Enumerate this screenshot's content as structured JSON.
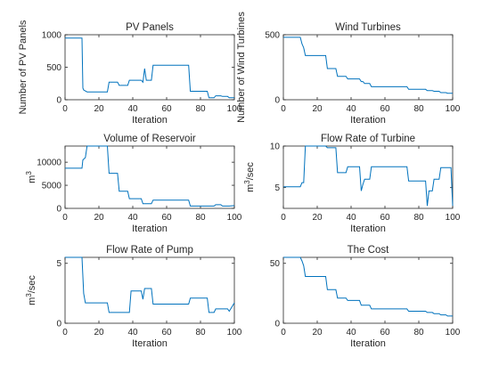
{
  "series_color": "#0072BD",
  "chart_data": [
    {
      "type": "line",
      "title": "PV Panels",
      "xlabel": "Iteration",
      "ylabel": "Number of PV Panels",
      "ylabel_sup": "",
      "xlim": [
        0,
        100
      ],
      "ylim": [
        0,
        1000
      ],
      "xticks": [
        0,
        20,
        40,
        60,
        80,
        100
      ],
      "yticks": [
        0,
        500,
        1000
      ],
      "grid": false,
      "x": [
        0,
        10,
        10.5,
        11,
        13,
        25,
        26,
        31,
        32,
        37,
        38,
        45,
        46,
        47,
        48,
        51,
        52,
        73,
        74,
        84,
        85,
        88,
        89,
        92,
        93,
        96,
        97,
        100
      ],
      "y": [
        950,
        950,
        180,
        150,
        120,
        120,
        270,
        270,
        220,
        220,
        300,
        300,
        270,
        480,
        300,
        300,
        530,
        530,
        130,
        130,
        30,
        30,
        60,
        60,
        50,
        50,
        30,
        30
      ]
    },
    {
      "type": "line",
      "title": "Wind Turbines",
      "xlabel": "Iteration",
      "ylabel": "Number of Wind Turbines",
      "ylabel_sup": "",
      "xlim": [
        0,
        100
      ],
      "ylim": [
        0,
        500
      ],
      "xticks": [
        0,
        20,
        40,
        60,
        80,
        100
      ],
      "yticks": [
        0,
        500
      ],
      "grid": false,
      "x": [
        0,
        10,
        11,
        12,
        13,
        25,
        26,
        31,
        32,
        37,
        38,
        45,
        46,
        47,
        48,
        51,
        52,
        73,
        74,
        84,
        85,
        88,
        89,
        92,
        93,
        96,
        97,
        100
      ],
      "y": [
        480,
        480,
        430,
        400,
        340,
        340,
        240,
        240,
        180,
        180,
        160,
        160,
        140,
        140,
        125,
        125,
        100,
        100,
        80,
        80,
        70,
        70,
        65,
        65,
        55,
        55,
        50,
        50
      ]
    },
    {
      "type": "line",
      "title": "Volume of Reservoir",
      "xlabel": "Iteration",
      "ylabel": "m",
      "ylabel_sup": "3",
      "xlim": [
        0,
        100
      ],
      "ylim": [
        0,
        13500
      ],
      "xticks": [
        0,
        20,
        40,
        60,
        80,
        100
      ],
      "yticks": [
        0,
        5000,
        10000
      ],
      "grid": false,
      "x": [
        0,
        10,
        10.5,
        12,
        13,
        25,
        26,
        31,
        32,
        37,
        38,
        45,
        46,
        47,
        48,
        51,
        52,
        73,
        74,
        84,
        85,
        88,
        89,
        92,
        93,
        96,
        97,
        100
      ],
      "y": [
        8700,
        8700,
        10500,
        11000,
        13500,
        13500,
        7600,
        7600,
        3700,
        3700,
        2100,
        2100,
        1000,
        1000,
        1000,
        1000,
        1800,
        1800,
        500,
        500,
        500,
        500,
        800,
        800,
        500,
        500,
        500,
        600
      ]
    },
    {
      "type": "line",
      "title": "Flow Rate of Turbine",
      "xlabel": "Iteration",
      "ylabel": "m",
      "ylabel_sup": "3",
      "ylabel_suffix": "/sec",
      "xlim": [
        0,
        100
      ],
      "ylim": [
        2.5,
        10
      ],
      "xticks": [
        0,
        20,
        40,
        60,
        80,
        100
      ],
      "yticks": [
        5,
        10
      ],
      "grid": false,
      "x": [
        0,
        10,
        11,
        12,
        13,
        25,
        26,
        31,
        32,
        37,
        38,
        45,
        46,
        47,
        48,
        51,
        52,
        73,
        74,
        84,
        85,
        86,
        88,
        89,
        92,
        93,
        96,
        97,
        99,
        100
      ],
      "y": [
        5.1,
        5.1,
        5.6,
        5.6,
        10,
        10,
        9.8,
        9.8,
        6.8,
        6.8,
        7.5,
        7.5,
        4.6,
        5.4,
        6.0,
        6.0,
        7.5,
        7.5,
        5.8,
        5.8,
        2.8,
        4.6,
        4.6,
        6.0,
        6.0,
        7.4,
        7.4,
        7.4,
        7.4,
        2.8
      ]
    },
    {
      "type": "line",
      "title": "Flow Rate of Pump",
      "xlabel": "Iteration",
      "ylabel": "m",
      "ylabel_sup": "3",
      "ylabel_suffix": "/sec",
      "xlim": [
        0,
        100
      ],
      "ylim": [
        0,
        5.5
      ],
      "xticks": [
        0,
        20,
        40,
        60,
        80,
        100
      ],
      "yticks": [
        0,
        5
      ],
      "grid": false,
      "x": [
        0,
        10,
        11,
        12,
        25,
        26,
        38,
        39,
        45,
        46,
        47,
        48,
        51,
        52,
        73,
        74,
        84,
        85,
        88,
        89,
        96,
        97,
        100
      ],
      "y": [
        5.5,
        5.5,
        2.5,
        1.7,
        1.7,
        0.9,
        0.9,
        2.7,
        2.7,
        2.0,
        2.9,
        2.9,
        2.9,
        1.6,
        1.6,
        2.1,
        2.1,
        0.9,
        0.9,
        1.2,
        1.2,
        1.0,
        1.7
      ]
    },
    {
      "type": "line",
      "title": "The Cost",
      "xlabel": "Iteration",
      "ylabel": "",
      "ylabel_sup": "",
      "xlim": [
        0,
        100
      ],
      "ylim": [
        0,
        55
      ],
      "xticks": [
        0,
        20,
        40,
        60,
        80,
        100
      ],
      "yticks": [
        0,
        50
      ],
      "grid": false,
      "x": [
        0,
        10,
        11,
        12,
        13,
        25,
        26,
        31,
        32,
        37,
        38,
        45,
        46,
        51,
        52,
        73,
        74,
        84,
        85,
        88,
        89,
        92,
        93,
        96,
        97,
        100
      ],
      "y": [
        55,
        55,
        52,
        48,
        39,
        39,
        28,
        28,
        21,
        21,
        19,
        19,
        15,
        15,
        12,
        12,
        10,
        10,
        9,
        9,
        8,
        8,
        7,
        7,
        6,
        6
      ]
    }
  ]
}
